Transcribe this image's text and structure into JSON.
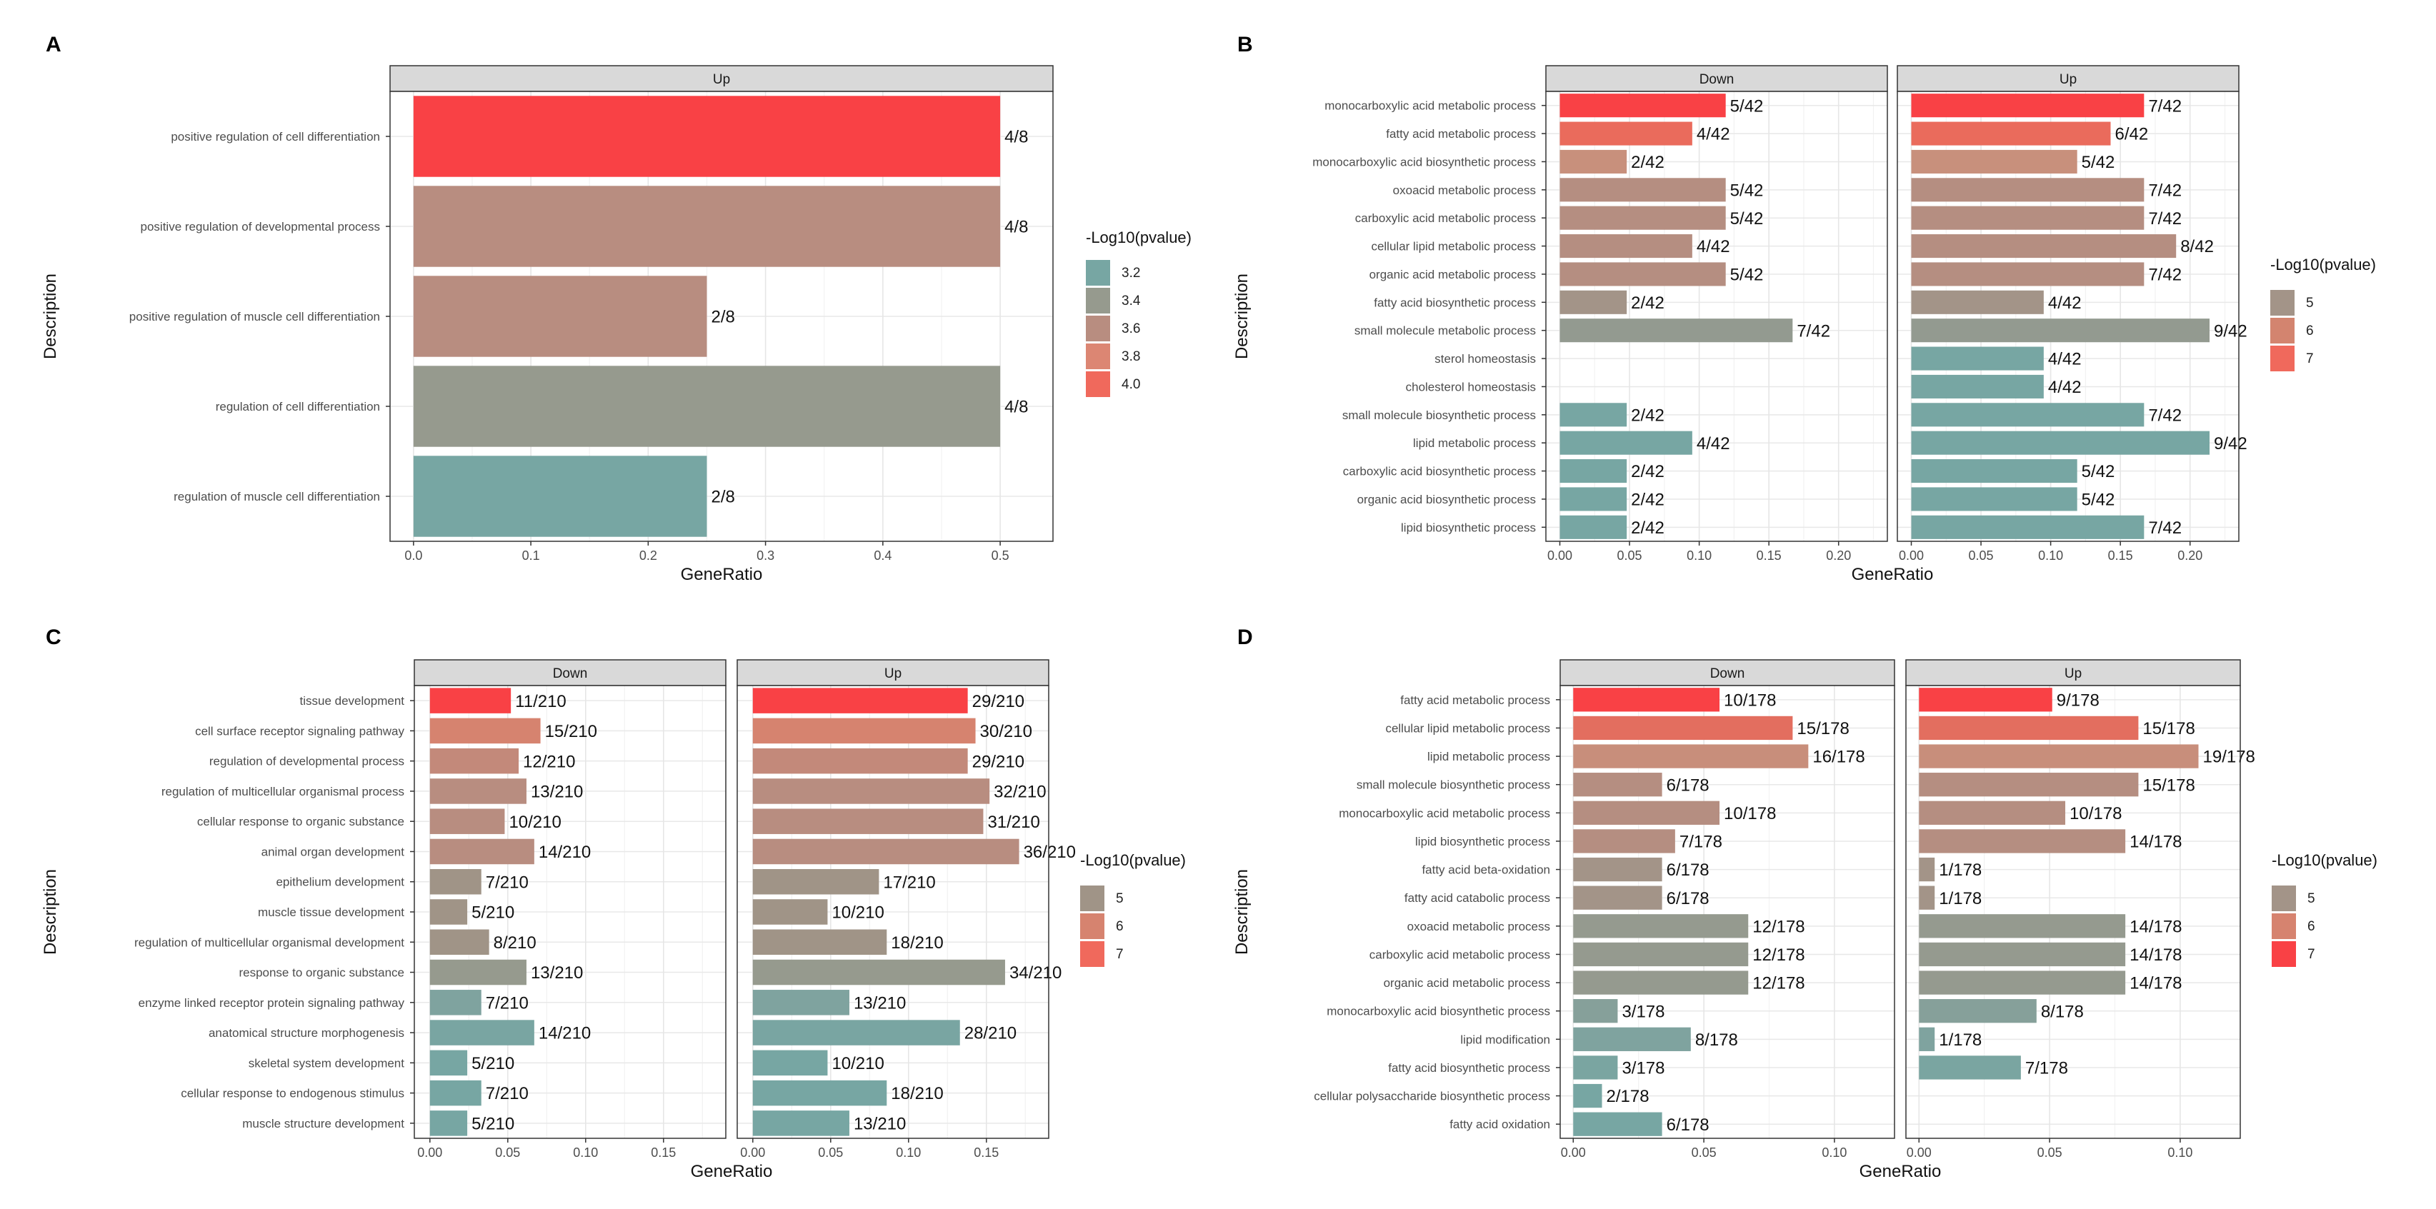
{
  "chart_data": [
    {
      "panel": "A",
      "type": "bar",
      "orientation": "horizontal",
      "facets": [
        "Up"
      ],
      "categories": [
        "positive regulation of cell differentiation",
        "positive regulation of developmental process",
        "positive regulation of muscle cell differentiation",
        "regulation of cell differentiation",
        "regulation of muscle cell differentiation"
      ],
      "series": [
        {
          "name": "Up",
          "values": [
            0.5,
            0.5,
            0.25,
            0.5,
            0.25
          ],
          "labels": [
            "4/8",
            "4/8",
            "2/8",
            "4/8",
            "2/8"
          ],
          "colors": [
            "#f94145",
            "#b88d80",
            "#b88d80",
            "#969a8e",
            "#77a6a3"
          ]
        }
      ],
      "xlabel": "GeneRatio",
      "ylabel": "Description",
      "xlim": [
        -0.02,
        0.545
      ],
      "xticks": [
        0.0,
        0.1,
        0.2,
        0.3,
        0.4,
        0.5
      ],
      "xtick_labels": [
        "0.0",
        "0.1",
        "0.2",
        "0.3",
        "0.4",
        "0.5"
      ],
      "legend": {
        "title": "-Log10(pvalue)",
        "items": [
          {
            "label": "3.2",
            "color": "#77a6a3"
          },
          {
            "label": "3.4",
            "color": "#969a8e"
          },
          {
            "label": "3.6",
            "color": "#b88d80"
          },
          {
            "label": "3.8",
            "color": "#dc8673"
          },
          {
            "label": "4.0",
            "color": "#f0695c"
          }
        ]
      }
    },
    {
      "panel": "B",
      "type": "bar",
      "orientation": "horizontal",
      "facets": [
        "Down",
        "Up"
      ],
      "categories": [
        "monocarboxylic acid metabolic process",
        "fatty acid metabolic process",
        "monocarboxylic acid biosynthetic process",
        "oxoacid metabolic process",
        "carboxylic acid metabolic process",
        "cellular lipid metabolic process",
        "organic acid metabolic process",
        "fatty acid biosynthetic process",
        "small molecule metabolic process",
        "sterol homeostasis",
        "cholesterol homeostasis",
        "small molecule biosynthetic process",
        "lipid metabolic process",
        "carboxylic acid biosynthetic process",
        "organic acid biosynthetic process",
        "lipid biosynthetic process"
      ],
      "series": [
        {
          "name": "Down",
          "values": [
            0.119,
            0.095,
            0.048,
            0.119,
            0.119,
            0.095,
            0.119,
            0.048,
            0.167,
            null,
            null,
            0.048,
            0.095,
            0.048,
            0.048,
            0.048
          ],
          "labels": [
            "5/42",
            "4/42",
            "2/42",
            "5/42",
            "5/42",
            "4/42",
            "5/42",
            "2/42",
            "7/42",
            "",
            "",
            "2/42",
            "4/42",
            "2/42",
            "2/42",
            "2/42"
          ],
          "colors": [
            "#f94145",
            "#ea6b5c",
            "#c8907c",
            "#b58e81",
            "#b58e81",
            "#b58e81",
            "#b58e81",
            "#a39488",
            "#939a90",
            null,
            null,
            "#77a6a3",
            "#77a6a3",
            "#77a6a3",
            "#77a6a3",
            "#77a6a3"
          ]
        },
        {
          "name": "Up",
          "values": [
            0.167,
            0.143,
            0.119,
            0.167,
            0.167,
            0.19,
            0.167,
            0.095,
            0.214,
            0.095,
            0.095,
            0.167,
            0.214,
            0.119,
            0.119,
            0.167
          ],
          "labels": [
            "7/42",
            "6/42",
            "5/42",
            "7/42",
            "7/42",
            "8/42",
            "7/42",
            "4/42",
            "9/42",
            "4/42",
            "4/42",
            "7/42",
            "9/42",
            "5/42",
            "5/42",
            "7/42"
          ],
          "colors": [
            "#f94145",
            "#ea6b5c",
            "#c8907c",
            "#b58e81",
            "#b58e81",
            "#b58e81",
            "#b58e81",
            "#a39488",
            "#939a90",
            "#77a6a3",
            "#77a6a3",
            "#77a6a3",
            "#77a6a3",
            "#77a6a3",
            "#77a6a3",
            "#77a6a3"
          ]
        }
      ],
      "xlabel": "GeneRatio",
      "ylabel": "Description",
      "xlim": [
        -0.01,
        0.235
      ],
      "xticks": [
        0.0,
        0.05,
        0.1,
        0.15,
        0.2
      ],
      "xtick_labels": [
        "0.00",
        "0.05",
        "0.10",
        "0.15",
        "0.20"
      ],
      "legend": {
        "title": "-Log10(pvalue)",
        "items": [
          {
            "label": "5",
            "color": "#a39488"
          },
          {
            "label": "6",
            "color": "#d3846f"
          },
          {
            "label": "7",
            "color": "#f0695c"
          }
        ]
      }
    },
    {
      "panel": "C",
      "type": "bar",
      "orientation": "horizontal",
      "facets": [
        "Down",
        "Up"
      ],
      "categories": [
        "tissue development",
        "cell surface receptor signaling pathway",
        "regulation of developmental process",
        "regulation of multicellular organismal process",
        "cellular response to organic substance",
        "animal organ development",
        "epithelium development",
        "muscle tissue development",
        "regulation of multicellular organismal development",
        "response to organic substance",
        "enzyme linked receptor protein signaling pathway",
        "anatomical structure morphogenesis",
        "skeletal system development",
        "cellular response to endogenous stimulus",
        "muscle structure development"
      ],
      "series": [
        {
          "name": "Down",
          "values": [
            0.052,
            0.071,
            0.057,
            0.062,
            0.048,
            0.067,
            0.033,
            0.024,
            0.038,
            0.062,
            0.033,
            0.067,
            0.024,
            0.033,
            0.024
          ],
          "labels": [
            "11/210",
            "15/210",
            "12/210",
            "13/210",
            "10/210",
            "14/210",
            "7/210",
            "5/210",
            "8/210",
            "13/210",
            "7/210",
            "14/210",
            "5/210",
            "7/210",
            "5/210"
          ],
          "colors": [
            "#f94145",
            "#d6836f",
            "#c3897a",
            "#b88d80",
            "#b88d80",
            "#b88d80",
            "#a09487",
            "#a09487",
            "#a09487",
            "#969a8e",
            "#7fa39f",
            "#79a5a2",
            "#77a6a3",
            "#77a6a3",
            "#77a6a3"
          ]
        },
        {
          "name": "Up",
          "values": [
            0.138,
            0.143,
            0.138,
            0.152,
            0.148,
            0.171,
            0.081,
            0.048,
            0.086,
            0.162,
            0.062,
            0.133,
            0.048,
            0.086,
            0.062
          ],
          "labels": [
            "29/210",
            "30/210",
            "29/210",
            "32/210",
            "31/210",
            "36/210",
            "17/210",
            "10/210",
            "18/210",
            "34/210",
            "13/210",
            "28/210",
            "10/210",
            "18/210",
            "13/210"
          ],
          "colors": [
            "#f94145",
            "#d6836f",
            "#c3897a",
            "#b88d80",
            "#b88d80",
            "#b88d80",
            "#a09487",
            "#a09487",
            "#a09487",
            "#969a8e",
            "#7fa39f",
            "#79a5a2",
            "#77a6a3",
            "#77a6a3",
            "#77a6a3"
          ]
        }
      ],
      "xlabel": "GeneRatio",
      "ylabel": "Description",
      "xlim": [
        -0.01,
        0.19
      ],
      "xticks": [
        0.0,
        0.05,
        0.1,
        0.15
      ],
      "xtick_labels": [
        "0.00",
        "0.05",
        "0.10",
        "0.15"
      ],
      "legend": {
        "title": "-Log10(pvalue)",
        "items": [
          {
            "label": "5",
            "color": "#a09487"
          },
          {
            "label": "6",
            "color": "#d6836f"
          },
          {
            "label": "7",
            "color": "#f0695c"
          }
        ]
      }
    },
    {
      "panel": "D",
      "type": "bar",
      "orientation": "horizontal",
      "facets": [
        "Down",
        "Up"
      ],
      "categories": [
        "fatty acid metabolic process",
        "cellular lipid metabolic process",
        "lipid metabolic process",
        "small molecule biosynthetic process",
        "monocarboxylic acid metabolic process",
        "lipid biosynthetic process",
        "fatty acid beta-oxidation",
        "fatty acid catabolic process",
        "oxoacid metabolic process",
        "carboxylic acid metabolic process",
        "organic acid metabolic process",
        "monocarboxylic acid biosynthetic process",
        "lipid modification",
        "fatty acid biosynthetic process",
        "cellular polysaccharide biosynthetic process",
        "fatty acid oxidation"
      ],
      "series": [
        {
          "name": "Down",
          "values": [
            0.056,
            0.084,
            0.09,
            0.034,
            0.056,
            0.039,
            0.034,
            0.034,
            0.067,
            0.067,
            0.067,
            0.017,
            0.045,
            0.017,
            0.011,
            0.034
          ],
          "labels": [
            "10/178",
            "15/178",
            "16/178",
            "6/178",
            "10/178",
            "7/178",
            "6/178",
            "6/178",
            "12/178",
            "12/178",
            "12/178",
            "3/178",
            "8/178",
            "3/178",
            "2/178",
            "6/178"
          ],
          "colors": [
            "#f94145",
            "#e36e5f",
            "#c88e7b",
            "#b58e81",
            "#b58e81",
            "#b58e81",
            "#a39488",
            "#a39488",
            "#959a8f",
            "#959a8f",
            "#959a8f",
            "#86a09a",
            "#7fa39f",
            "#7aa5a1",
            "#77a6a3",
            "#77a6a3"
          ]
        },
        {
          "name": "Up",
          "values": [
            0.051,
            0.084,
            0.107,
            0.084,
            0.056,
            0.079,
            0.006,
            0.006,
            0.079,
            0.079,
            0.079,
            0.045,
            0.006,
            0.039,
            null,
            null
          ],
          "labels": [
            "9/178",
            "15/178",
            "19/178",
            "15/178",
            "10/178",
            "14/178",
            "1/178",
            "1/178",
            "14/178",
            "14/178",
            "14/178",
            "8/178",
            "1/178",
            "7/178",
            "",
            ""
          ],
          "colors": [
            "#f94145",
            "#e36e5f",
            "#c88e7b",
            "#b58e81",
            "#b58e81",
            "#b58e81",
            "#a39488",
            "#a39488",
            "#959a8f",
            "#959a8f",
            "#959a8f",
            "#86a09a",
            "#7fa39f",
            "#7aa5a1",
            null,
            null
          ]
        }
      ],
      "xlabel": "GeneRatio",
      "ylabel": "Description",
      "xlim": [
        -0.005,
        0.123
      ],
      "xticks": [
        0.0,
        0.05,
        0.1
      ],
      "xtick_labels": [
        "0.00",
        "0.05",
        "0.10"
      ],
      "legend": {
        "title": "-Log10(pvalue)",
        "items": [
          {
            "label": "5",
            "color": "#a39488"
          },
          {
            "label": "6",
            "color": "#d6836f"
          },
          {
            "label": "7",
            "color": "#f94145"
          }
        ]
      }
    }
  ]
}
